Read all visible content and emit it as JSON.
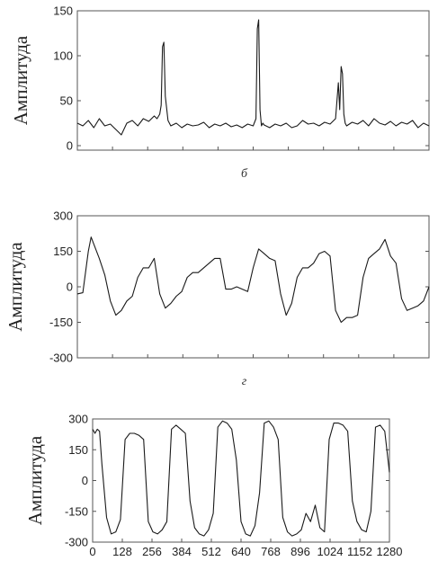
{
  "chart_data": [
    {
      "type": "line",
      "ylabel": "Амплитуда",
      "caption": "б",
      "ylim": [
        -5,
        150
      ],
      "yticks": [
        0,
        50,
        100,
        150
      ],
      "xlim": [
        0,
        1280
      ],
      "xticks_labeled": false,
      "series": [
        {
          "x": [
            0,
            20,
            40,
            60,
            80,
            100,
            120,
            140,
            160,
            180,
            200,
            220,
            240,
            260,
            280,
            290,
            300,
            305,
            310,
            315,
            320,
            330,
            340,
            360,
            380,
            400,
            420,
            440,
            460,
            480,
            500,
            520,
            540,
            560,
            580,
            600,
            620,
            640,
            650,
            655,
            660,
            665,
            670,
            675,
            680,
            700,
            720,
            740,
            760,
            780,
            800,
            820,
            840,
            860,
            880,
            900,
            920,
            940,
            950,
            955,
            960,
            965,
            970,
            975,
            980,
            1000,
            1020,
            1040,
            1060,
            1080,
            1100,
            1120,
            1140,
            1160,
            1180,
            1200,
            1220,
            1240,
            1260,
            1280
          ],
          "y": [
            25,
            22,
            28,
            20,
            30,
            22,
            24,
            18,
            12,
            25,
            28,
            22,
            30,
            27,
            33,
            30,
            35,
            45,
            110,
            115,
            55,
            28,
            22,
            25,
            20,
            24,
            22,
            23,
            26,
            20,
            24,
            22,
            25,
            21,
            23,
            20,
            24,
            22,
            30,
            130,
            140,
            40,
            22,
            25,
            23,
            20,
            24,
            22,
            25,
            20,
            22,
            28,
            24,
            25,
            22,
            26,
            24,
            30,
            70,
            40,
            88,
            80,
            35,
            25,
            22,
            26,
            24,
            28,
            22,
            30,
            25,
            23,
            27,
            22,
            26,
            24,
            28,
            20,
            25,
            22
          ]
        }
      ]
    },
    {
      "type": "line",
      "ylabel": "Амплитуда",
      "caption": "г",
      "ylim": [
        -300,
        300
      ],
      "yticks": [
        -300,
        -150,
        0,
        150,
        300
      ],
      "xlim": [
        0,
        1280
      ],
      "xticks_labeled": false,
      "series": [
        {
          "x": [
            0,
            20,
            40,
            50,
            60,
            80,
            100,
            120,
            140,
            160,
            180,
            200,
            220,
            240,
            260,
            280,
            300,
            320,
            340,
            360,
            380,
            400,
            420,
            440,
            460,
            480,
            500,
            520,
            540,
            560,
            580,
            600,
            620,
            640,
            660,
            680,
            700,
            720,
            740,
            760,
            780,
            800,
            820,
            840,
            860,
            880,
            900,
            920,
            940,
            960,
            980,
            1000,
            1020,
            1040,
            1060,
            1080,
            1100,
            1120,
            1140,
            1160,
            1180,
            1200,
            1220,
            1240,
            1260,
            1280
          ],
          "y": [
            -30,
            -25,
            150,
            210,
            180,
            120,
            50,
            -60,
            -120,
            -100,
            -60,
            -40,
            40,
            80,
            80,
            120,
            -30,
            -90,
            -70,
            -40,
            -20,
            40,
            60,
            60,
            80,
            100,
            120,
            120,
            -10,
            -10,
            0,
            -10,
            -20,
            80,
            160,
            140,
            120,
            110,
            -30,
            -120,
            -70,
            40,
            80,
            80,
            100,
            140,
            150,
            130,
            -100,
            -150,
            -130,
            -130,
            -120,
            40,
            120,
            140,
            160,
            200,
            130,
            100,
            -50,
            -100,
            -90,
            -80,
            -60,
            0
          ]
        }
      ]
    },
    {
      "type": "line",
      "ylabel": "Амплитуда",
      "ylim": [
        -300,
        300
      ],
      "yticks": [
        -300,
        -150,
        0,
        150,
        300
      ],
      "xlim": [
        0,
        1280
      ],
      "xticks": [
        0,
        128,
        256,
        384,
        512,
        640,
        768,
        896,
        1024,
        1152,
        1280
      ],
      "series": [
        {
          "x": [
            0,
            10,
            20,
            30,
            40,
            60,
            80,
            100,
            120,
            140,
            160,
            180,
            200,
            220,
            240,
            260,
            280,
            300,
            320,
            340,
            360,
            380,
            400,
            420,
            440,
            460,
            480,
            500,
            520,
            540,
            560,
            580,
            600,
            620,
            640,
            660,
            680,
            700,
            720,
            740,
            760,
            780,
            800,
            820,
            840,
            860,
            880,
            900,
            920,
            940,
            960,
            980,
            1000,
            1020,
            1040,
            1060,
            1080,
            1100,
            1120,
            1140,
            1160,
            1180,
            1200,
            1220,
            1240,
            1260,
            1280
          ],
          "y": [
            250,
            230,
            250,
            240,
            80,
            -180,
            -260,
            -250,
            -190,
            200,
            230,
            230,
            220,
            200,
            -200,
            -250,
            -260,
            -240,
            -200,
            250,
            270,
            250,
            230,
            -100,
            -230,
            -260,
            -270,
            -240,
            -160,
            260,
            290,
            280,
            250,
            100,
            -200,
            -260,
            -270,
            -220,
            -60,
            280,
            290,
            260,
            200,
            -180,
            -250,
            -270,
            -260,
            -240,
            -160,
            -200,
            -120,
            -230,
            -250,
            200,
            280,
            280,
            270,
            240,
            -100,
            -200,
            -240,
            -250,
            -150,
            260,
            270,
            240,
            40
          ]
        }
      ]
    }
  ]
}
